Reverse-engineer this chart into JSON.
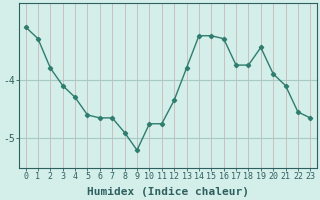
{
  "x": [
    0,
    1,
    2,
    3,
    4,
    5,
    6,
    7,
    8,
    9,
    10,
    11,
    12,
    13,
    14,
    15,
    16,
    17,
    18,
    19,
    20,
    21,
    22,
    23
  ],
  "y": [
    -3.1,
    -3.3,
    -3.8,
    -4.1,
    -4.3,
    -4.6,
    -4.65,
    -4.65,
    -4.9,
    -5.2,
    -4.75,
    -4.75,
    -4.35,
    -3.8,
    -3.25,
    -3.25,
    -3.3,
    -3.75,
    -3.75,
    -3.45,
    -3.9,
    -4.1,
    -4.55,
    -4.65
  ],
  "line_color": "#2e7d6e",
  "bg_color": "#d4eeea",
  "grid_color_v": "#c8b8b8",
  "grid_color_h": "#a8c8c4",
  "axis_color": "#2e6060",
  "xlabel": "Humidex (Indice chaleur)",
  "yticks": [
    -5,
    -4
  ],
  "ylim": [
    -5.5,
    -2.7
  ],
  "xlim": [
    -0.5,
    23.5
  ],
  "xlabel_fontsize": 8,
  "tick_fontsize": 7
}
